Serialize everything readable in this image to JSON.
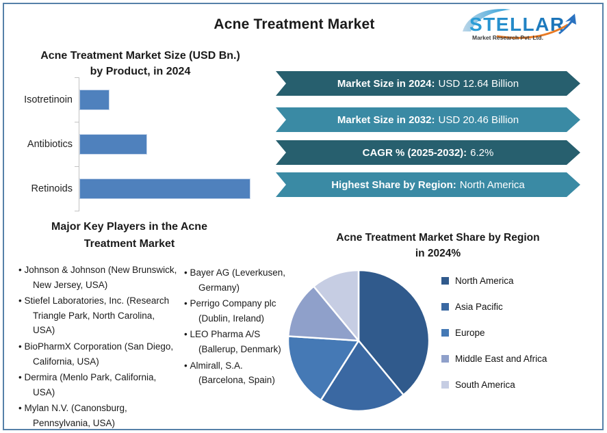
{
  "page": {
    "title": "Acne Treatment Market"
  },
  "logo": {
    "brand": "STELLAR",
    "tagline": "Market Research Pvt. Ltd.",
    "brand_color": "#1b75bc",
    "swoosh_color": "#7fb8dc",
    "arrow_color": "#2a72c0",
    "underline_color": "#e87a24"
  },
  "bar_section": {
    "title_line1": "Acne Treatment Market Size (USD Bn.)",
    "title_line2": "by Product, in 2024"
  },
  "banners": [
    {
      "label": "Market Size in 2024:",
      "value": "USD 12.64 Billion",
      "color": "#275f6e"
    },
    {
      "label": "Market Size in 2032:",
      "value": "USD 20.46 Billion",
      "color": "#3a8aa4"
    },
    {
      "label": "CAGR % (2025-2032):",
      "value": "6.2%",
      "color": "#275f6e"
    },
    {
      "label": "Highest Share by Region:",
      "value": "North America",
      "color": "#3a8aa4"
    }
  ],
  "key_players": {
    "title_line1": "Major Key Players in the Acne",
    "title_line2": "Treatment Market",
    "column1": [
      "Johnson & Johnson (New Brunswick, New Jersey, USA)",
      "Stiefel Laboratories, Inc. (Research Triangle Park, North Carolina, USA)",
      "BioPharmX Corporation (San Diego, California, USA)",
      "Dermira (Menlo Park, California, USA)",
      "Mylan N.V. (Canonsburg, Pennsylvania, USA)"
    ],
    "column2": [
      "Bayer AG (Leverkusen, Germany)",
      "Perrigo Company plc (Dublin, Ireland)",
      "LEO Pharma A/S (Ballerup, Denmark)",
      "Almirall, S.A. (Barcelona, Spain)"
    ]
  },
  "pie_section": {
    "title_line1": "Acne Treatment Market Share by Region",
    "title_line2": "in 2024%"
  },
  "chart_data": [
    {
      "type": "bar",
      "orientation": "horizontal",
      "title": "Acne Treatment Market Size (USD Bn.) by Product, in 2024",
      "categories": [
        "Isotretinoin",
        "Antibiotics",
        "Retinoids"
      ],
      "values_pct_of_max": [
        17,
        39,
        100
      ],
      "bar_color": "#4f81bd",
      "grid": false,
      "axis_value_labels_shown": false
    },
    {
      "type": "pie",
      "title": "Acne Treatment Market Share by Region in 2024%",
      "labels": [
        "North America",
        "Asia Pacific",
        "Europe",
        "Middle East and Africa",
        "South America"
      ],
      "values_pct": [
        39,
        20,
        17,
        13,
        11
      ],
      "colors": [
        "#305a8c",
        "#3a68a2",
        "#4579b5",
        "#8fa0ca",
        "#c6cde3"
      ],
      "start_angle_deg": 0,
      "direction": "clockwise",
      "legend_position": "right"
    }
  ]
}
